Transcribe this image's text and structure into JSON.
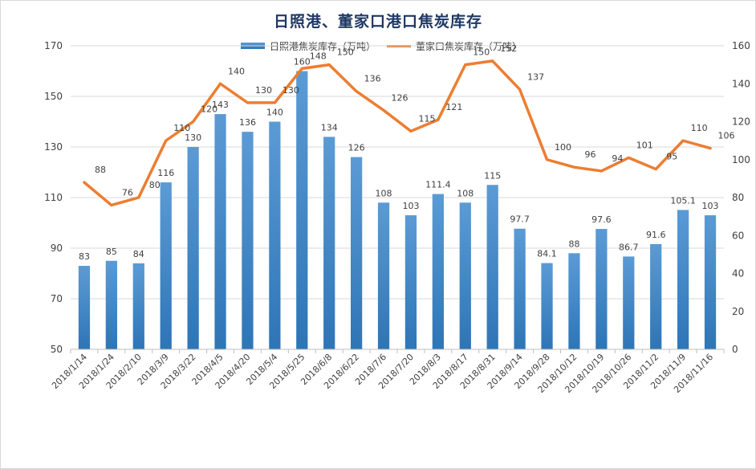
{
  "chart_data": {
    "type": "bar",
    "title": "日照港、董家口港口焦炭库存",
    "categories": [
      "2018/1/14",
      "2018/1/24",
      "2018/2/10",
      "2018/3/9",
      "2018/3/22",
      "2018/4/5",
      "2018/4/20",
      "2018/5/4",
      "2018/5/25",
      "2018/6/8",
      "2018/6/22",
      "2018/7/6",
      "2018/7/20",
      "2018/8/3",
      "2018/8/17",
      "2018/8/31",
      "2018/9/14",
      "2018/9/28",
      "2018/10/12",
      "2018/10/19",
      "2018/10/26",
      "2018/11/2",
      "2018/11/9",
      "2018/11/16"
    ],
    "series": [
      {
        "name": "日照港焦炭库存（万吨）",
        "type": "bar",
        "axis": "left",
        "values": [
          83,
          85,
          84,
          116,
          130,
          143,
          136,
          140,
          160,
          134,
          126,
          108,
          103,
          111.4,
          108,
          115,
          97.7,
          84.1,
          88,
          97.6,
          86.7,
          91.6,
          105.1,
          103
        ],
        "labels": [
          "83",
          "85",
          "84",
          "116",
          "130",
          "143",
          "136",
          "140",
          "160",
          "134",
          "126",
          "108",
          "103",
          "111.4",
          "108",
          "115",
          "97.7",
          "84.1",
          "88",
          "97.6",
          "86.7",
          "91.6",
          "105.1",
          "103"
        ]
      },
      {
        "name": "董家口焦炭库存（万吨）",
        "type": "line",
        "axis": "right",
        "values": [
          88,
          76,
          80,
          110,
          120,
          140,
          130,
          130,
          148,
          150,
          136,
          126,
          115,
          121,
          150,
          152,
          137,
          100,
          96,
          94,
          101,
          95,
          110,
          106
        ],
        "labels": [
          "88",
          "76",
          "80",
          "110",
          "120",
          "140",
          "130",
          "130",
          "148",
          "150",
          "136",
          "126",
          "115",
          "121",
          "150",
          "152",
          "137",
          "100",
          "96",
          "94",
          "101",
          "95",
          "110",
          "106"
        ]
      }
    ],
    "y_left": {
      "min": 50,
      "max": 170,
      "ticks": [
        "50",
        "70",
        "90",
        "110",
        "130",
        "150",
        "170"
      ]
    },
    "y_right": {
      "min": 0,
      "max": 160,
      "ticks": [
        "0",
        "20",
        "40",
        "60",
        "80",
        "100",
        "120",
        "140",
        "160"
      ]
    },
    "grid": true,
    "legend": "top",
    "colors": {
      "bar_top": "#5b9bd5",
      "bar_bottom": "#2e75b6",
      "line": "#ed7d31",
      "title": "#1f3864",
      "grid": "#d9d9d9",
      "text": "#404040"
    }
  }
}
